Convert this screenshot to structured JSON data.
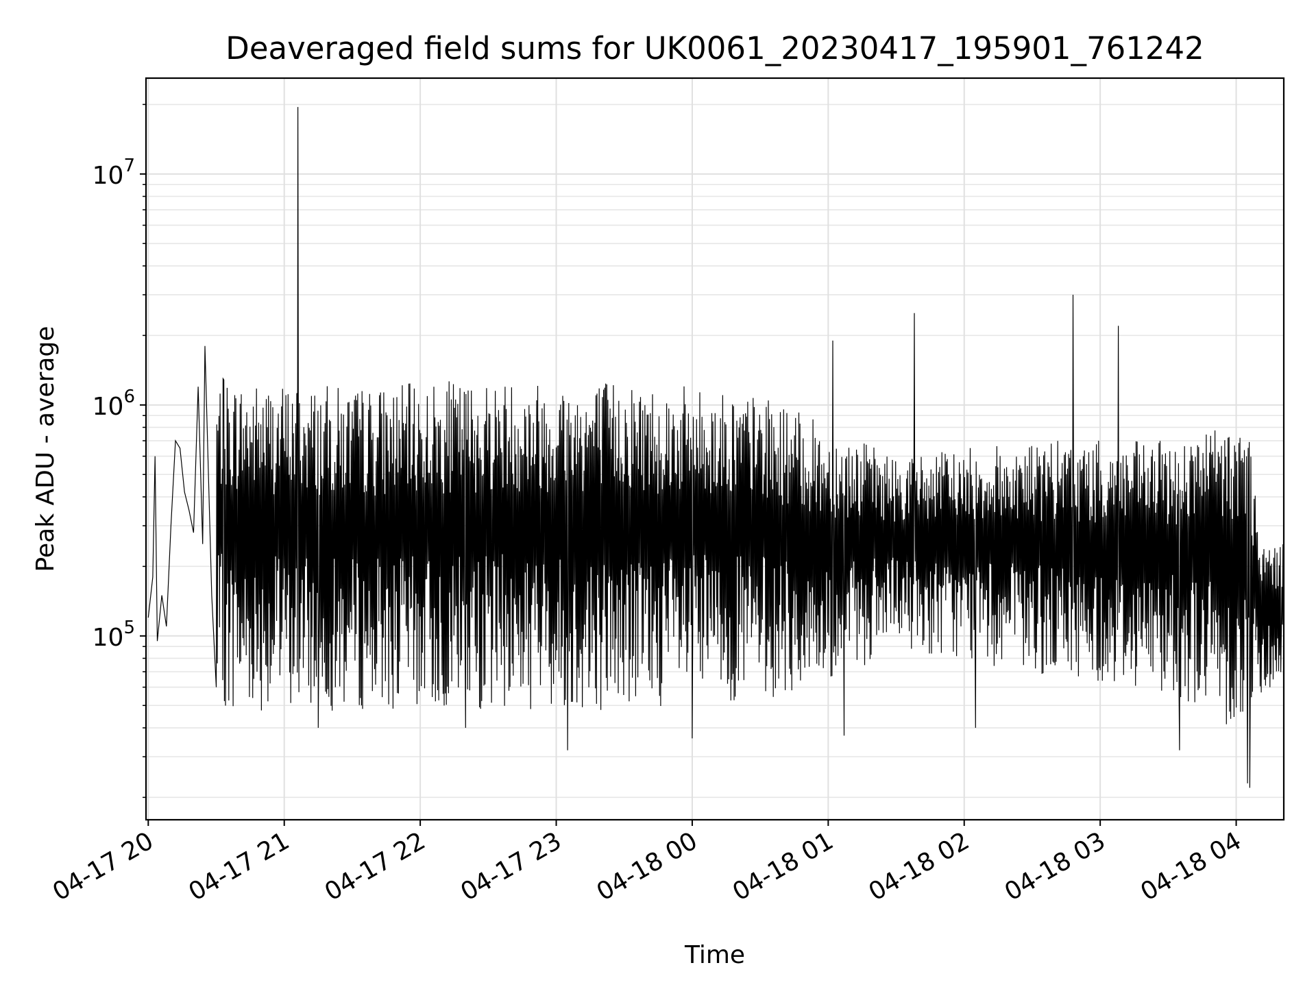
{
  "chart_data": {
    "type": "line",
    "title": "Deaveraged field sums for UK0061_20230417_195901_761242",
    "xlabel": "Time",
    "ylabel": "Peak ADU - average",
    "yscale": "log",
    "ylim": [
      16000,
      26000000
    ],
    "xlim": [
      "2023-04-17 19:59",
      "2023-04-18 04:21"
    ],
    "grid": true,
    "line_color": "#000000",
    "x_ticks": [
      {
        "t": "2023-04-17 20:00",
        "label": "04-17 20"
      },
      {
        "t": "2023-04-17 21:00",
        "label": "04-17 21"
      },
      {
        "t": "2023-04-17 22:00",
        "label": "04-17 22"
      },
      {
        "t": "2023-04-17 23:00",
        "label": "04-17 23"
      },
      {
        "t": "2023-04-18 00:00",
        "label": "04-18 00"
      },
      {
        "t": "2023-04-18 01:00",
        "label": "04-18 01"
      },
      {
        "t": "2023-04-18 02:00",
        "label": "04-18 02"
      },
      {
        "t": "2023-04-18 03:00",
        "label": "04-18 03"
      },
      {
        "t": "2023-04-18 04:00",
        "label": "04-18 04"
      }
    ],
    "y_ticks": [
      {
        "value": 100000,
        "base": "10",
        "exp": "5"
      },
      {
        "value": 1000000,
        "base": "10",
        "exp": "6"
      },
      {
        "value": 10000000,
        "base": "10",
        "exp": "7"
      }
    ],
    "series": [
      {
        "points": [
          [
            "2023-04-17 20:00",
            120000
          ],
          [
            "2023-04-17 20:02",
            180000
          ],
          [
            "2023-04-17 20:03",
            600000
          ],
          [
            "2023-04-17 20:04",
            95000
          ],
          [
            "2023-04-17 20:06",
            150000
          ],
          [
            "2023-04-17 20:08",
            110000
          ],
          [
            "2023-04-17 20:10",
            300000
          ],
          [
            "2023-04-17 20:12",
            700000
          ],
          [
            "2023-04-17 20:14",
            650000
          ],
          [
            "2023-04-17 20:16",
            420000
          ],
          [
            "2023-04-17 20:18",
            350000
          ],
          [
            "2023-04-17 20:20",
            280000
          ],
          [
            "2023-04-17 20:22",
            1200000
          ],
          [
            "2023-04-17 20:24",
            250000
          ],
          [
            "2023-04-17 20:25",
            1800000
          ],
          [
            "2023-04-17 20:28",
            150000
          ],
          [
            "2023-04-17 20:30",
            60000
          ],
          [
            "2023-04-17 20:33",
            1300000
          ],
          [
            "2023-04-17 21:06",
            19500000
          ],
          [
            "2023-04-17 21:15",
            40000
          ],
          [
            "2023-04-17 22:20",
            40000
          ],
          [
            "2023-04-17 23:05",
            32000
          ],
          [
            "2023-04-18 00:00",
            36000
          ],
          [
            "2023-04-18 01:02",
            1900000
          ],
          [
            "2023-04-18 01:07",
            37000
          ],
          [
            "2023-04-18 01:38",
            2500000
          ],
          [
            "2023-04-18 02:05",
            40000
          ],
          [
            "2023-04-18 02:48",
            3000000
          ],
          [
            "2023-04-18 03:08",
            2200000
          ],
          [
            "2023-04-18 03:35",
            32000
          ],
          [
            "2023-04-18 04:05",
            23000
          ],
          [
            "2023-04-18 04:06",
            22000
          ],
          [
            "2023-04-18 04:20",
            120000
          ]
        ],
        "envelope": [
          [
            "2023-04-17 20:30",
            40000,
            1300000
          ],
          [
            "2023-04-17 21:30",
            40000,
            1200000
          ],
          [
            "2023-04-17 22:30",
            40000,
            1300000
          ],
          [
            "2023-04-17 23:30",
            40000,
            1300000
          ],
          [
            "2023-04-18 00:30",
            45000,
            1100000
          ],
          [
            "2023-04-18 01:00",
            50000,
            800000
          ],
          [
            "2023-04-18 01:30",
            80000,
            600000
          ],
          [
            "2023-04-18 02:30",
            60000,
            700000
          ],
          [
            "2023-04-18 03:30",
            50000,
            700000
          ],
          [
            "2023-04-18 04:05",
            30000,
            900000
          ],
          [
            "2023-04-18 04:10",
            50000,
            250000
          ],
          [
            "2023-04-18 04:21",
            60000,
            250000
          ]
        ]
      }
    ]
  }
}
